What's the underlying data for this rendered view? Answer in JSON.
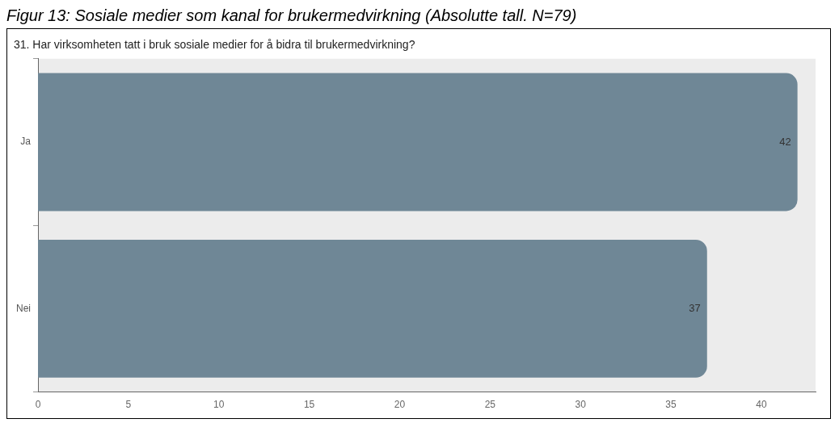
{
  "chart_data": {
    "type": "bar",
    "orientation": "horizontal",
    "title": "Figur 13: Sosiale medier som kanal for brukermedvirkning (Absolutte tall. N=79)",
    "subtitle": "31. Har virksomheten tatt i bruk sosiale medier for å bidra til brukermedvirkning?",
    "categories": [
      "Ja",
      "Nei"
    ],
    "values": [
      42,
      37
    ],
    "color": "#6f8796",
    "xlim": [
      0,
      43
    ],
    "xticks": [
      0,
      5,
      10,
      15,
      20,
      25,
      30,
      35,
      40
    ],
    "data_labels": true,
    "grid": false,
    "legend": false
  }
}
